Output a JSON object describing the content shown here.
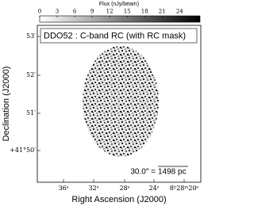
{
  "chart_data": {
    "type": "image",
    "title": "DDO52 : C-band RC (with RC mask)",
    "colorbar_label": "Flux (nJy/beam)",
    "colormap": "Greys",
    "clim": [
      0,
      27.5
    ],
    "cticks": [
      0,
      3,
      6,
      9,
      12,
      15,
      18,
      21,
      24
    ],
    "x_label": "Right Ascension (J2000)",
    "y_label": "Declination (J2000)",
    "x_tick_labels": [
      "36ˢ",
      "32ˢ",
      "28ˢ",
      "24ˢ",
      "8ʰ28ᵐ20ˢ"
    ],
    "y_tick_labels": [
      "53′",
      "52′",
      "51′",
      "+41°50′"
    ],
    "scalebar_angle": "30.0″ =",
    "scalebar_length": "1498 pc"
  }
}
